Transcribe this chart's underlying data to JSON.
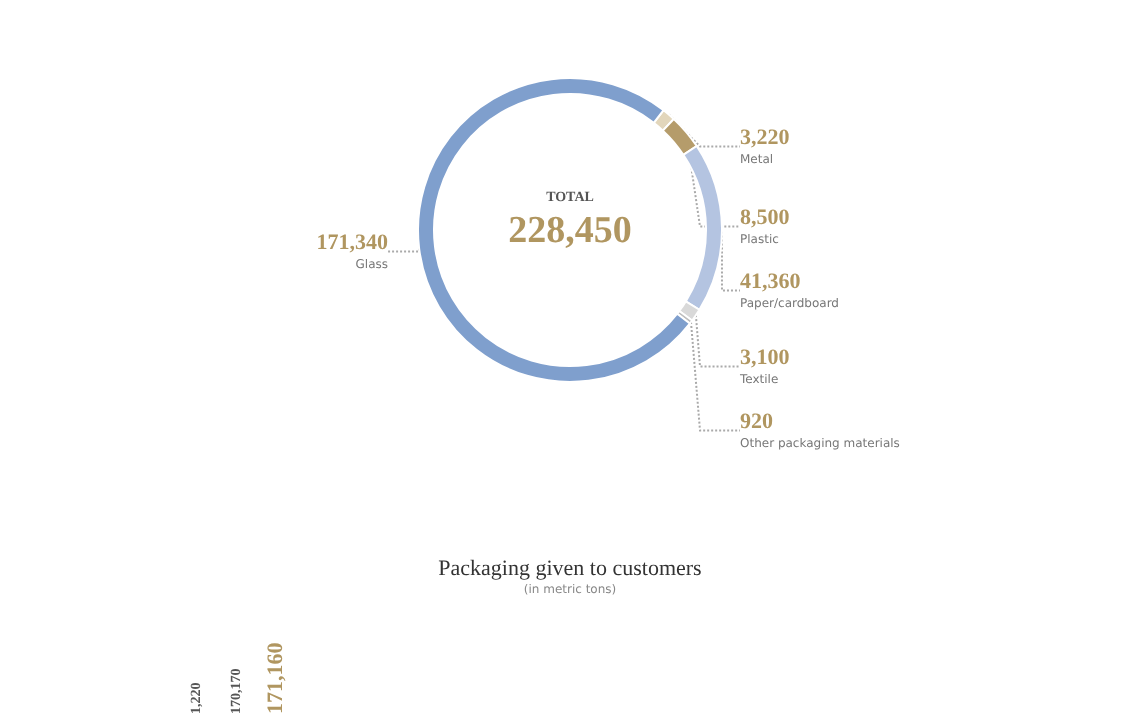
{
  "chart_data": [
    {
      "type": "donut",
      "categories": [
        "Metal",
        "Plastic",
        "Paper/cardboard",
        "Textile",
        "Other packaging materials",
        "Glass"
      ],
      "values": [
        3220,
        8500,
        41360,
        3100,
        920,
        171340
      ],
      "colors": [
        "#e2d6bb",
        "#b59c6b",
        "#b4c4e1",
        "#d9d9d9",
        "#bdbdbd",
        "#7f9fcd"
      ],
      "value_labels": [
        "3,220",
        "8,500",
        "41,360",
        "3,100",
        "920",
        "171,340"
      ],
      "annotations": [
        "TOTAL",
        "228,450"
      ]
    },
    {
      "type": "other",
      "title": "Packaging given to customers",
      "subtitle": "(in metric tons)",
      "annotations": [
        "1,220",
        "170,170",
        "171,160"
      ]
    }
  ]
}
